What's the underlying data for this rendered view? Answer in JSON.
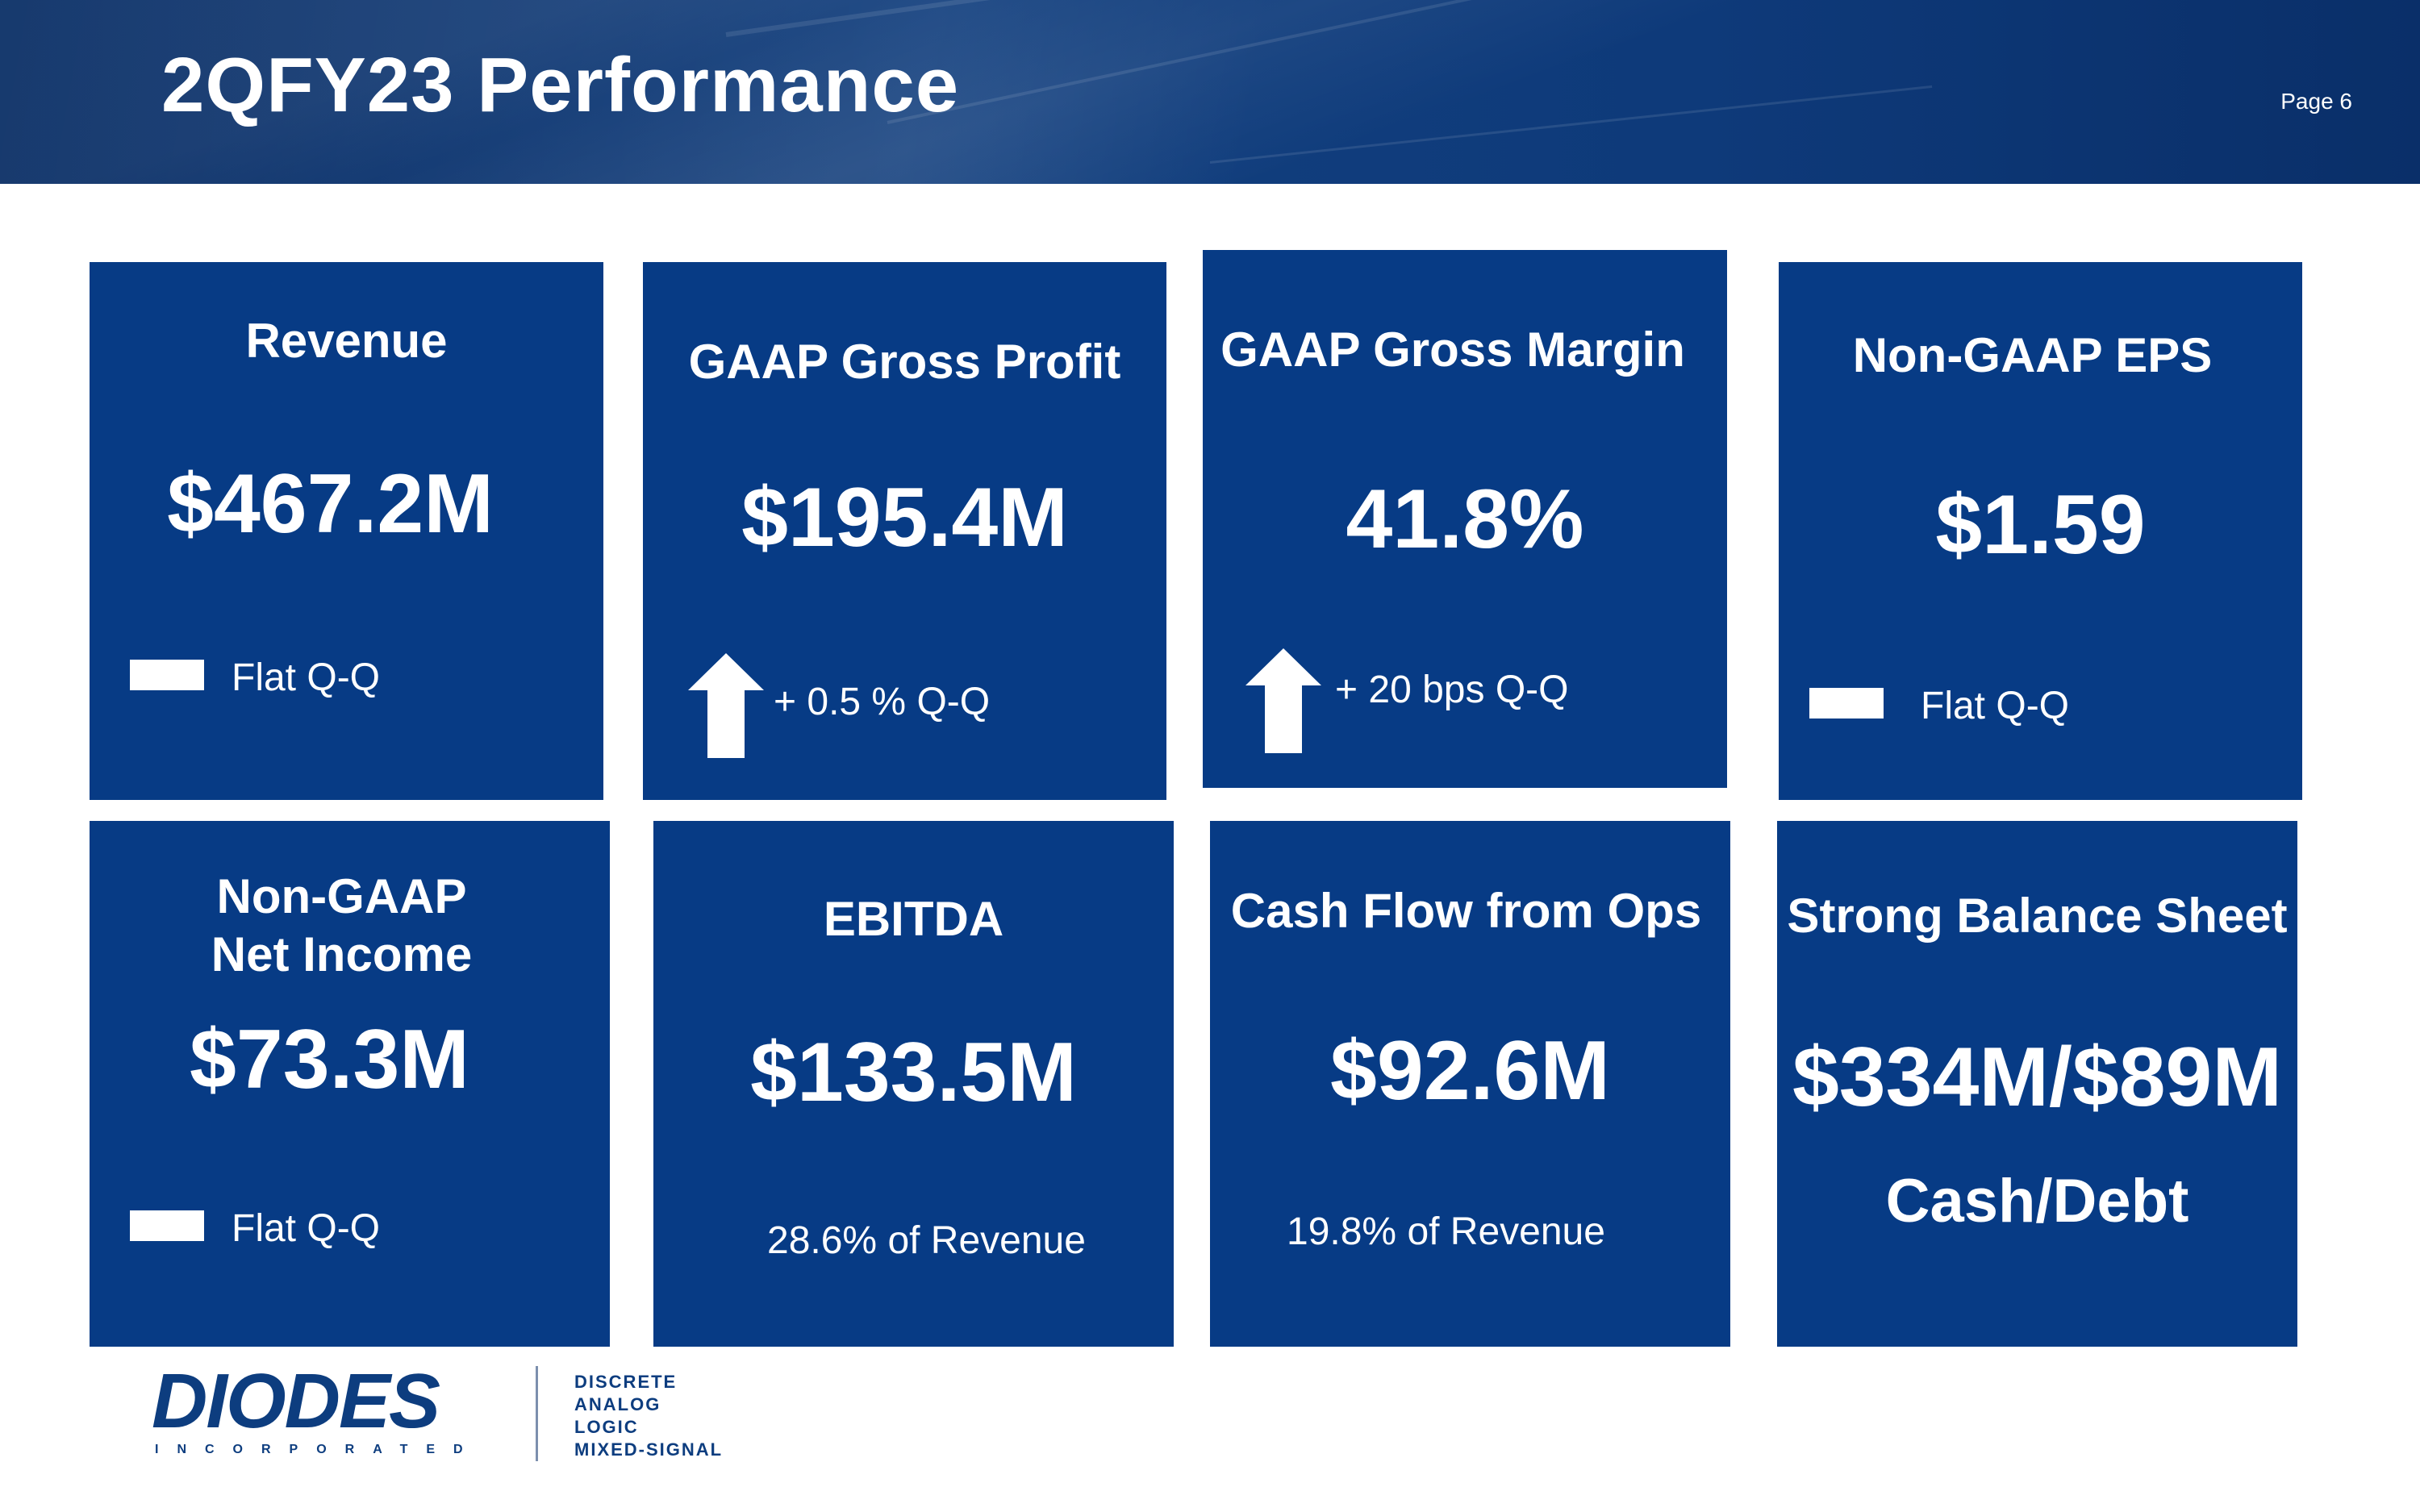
{
  "header": {
    "title": "2QFY23 Performance",
    "page": "Page 6"
  },
  "tiles": {
    "revenue": {
      "label": "Revenue",
      "value": "$467.2M",
      "note": "Flat  Q-Q",
      "trend": "flat"
    },
    "gross_profit": {
      "label": "GAAP Gross Profit",
      "value": "$195.4M",
      "note": "+ 0.5 % Q-Q",
      "trend": "up"
    },
    "gross_margin": {
      "label": "GAAP Gross Margin",
      "value": "41.8%",
      "note": "+ 20 bps Q-Q",
      "trend": "up"
    },
    "eps": {
      "label": "Non-GAAP EPS",
      "value": "$1.59",
      "note": "Flat Q-Q",
      "trend": "flat"
    },
    "net_income": {
      "label_line1": "Non-GAAP",
      "label_line2": "Net Income",
      "value": "$73.3M",
      "note": "Flat Q-Q",
      "trend": "flat"
    },
    "ebitda": {
      "label": "EBITDA",
      "value": "$133.5M",
      "note": "28.6% of Revenue"
    },
    "cash_flow": {
      "label": "Cash Flow from Ops",
      "value": "$92.6M",
      "note": "19.8% of Revenue"
    },
    "balance_sheet": {
      "label": "Strong Balance Sheet",
      "value": "$334M/$89M",
      "sub": "Cash/Debt"
    }
  },
  "logo": {
    "wordmark": "DIODES",
    "incorporated": "INCORPORATED",
    "tags": [
      "DISCRETE",
      "ANALOG",
      "LOGIC",
      "MIXED-SIGNAL"
    ]
  },
  "colors": {
    "tile": "#073b85",
    "header": "#0d3d7f",
    "text": "#ffffff"
  }
}
